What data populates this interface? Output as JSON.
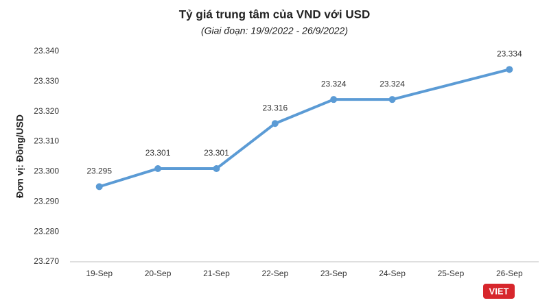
{
  "chart_data": {
    "type": "line",
    "title": "Tỷ giá trung tâm của VND với USD",
    "subtitle": "(Giai đoạn: 19/9/2022 - 26/9/2022)",
    "y_label": "Đơn vị: Đồng/USD",
    "categories": [
      "19-Sep",
      "20-Sep",
      "21-Sep",
      "22-Sep",
      "23-Sep",
      "24-Sep",
      "25-Sep",
      "26-Sep"
    ],
    "values": [
      23295,
      23301,
      23301,
      23316,
      23324,
      23324,
      null,
      23334
    ],
    "value_labels": [
      "23.295",
      "23.301",
      "23.301",
      "23.316",
      "23.324",
      "23.324",
      null,
      "23.334"
    ],
    "color": "#5b9bd5",
    "ylim": [
      23270,
      23340
    ],
    "yticks": [
      {
        "value": 23270,
        "label": "23.270"
      },
      {
        "value": 23280,
        "label": "23.280"
      },
      {
        "value": 23290,
        "label": "23.290"
      },
      {
        "value": 23300,
        "label": "23.300"
      },
      {
        "value": 23310,
        "label": "23.310"
      },
      {
        "value": 23320,
        "label": "23.320"
      },
      {
        "value": 23330,
        "label": "23.330"
      },
      {
        "value": 23340,
        "label": "23.340"
      }
    ],
    "grid": false,
    "watermark": "VIET"
  }
}
